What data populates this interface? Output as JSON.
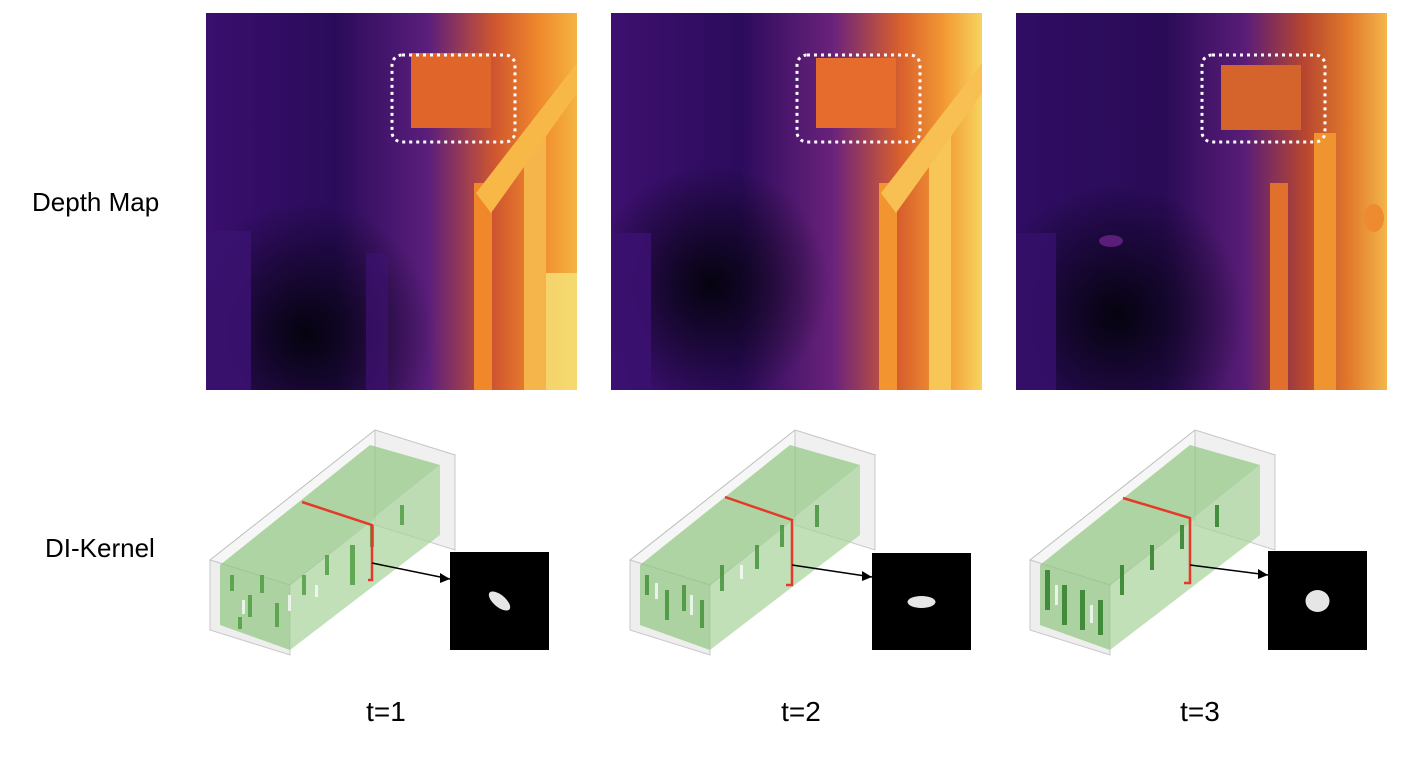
{
  "rows": {
    "depth_label": "Depth Map",
    "kernel_label": "DI-Kernel"
  },
  "columns": [
    {
      "step_label": "t=1",
      "kernel_angle_deg": 40,
      "kernel_rx": 13,
      "kernel_ry": 6
    },
    {
      "step_label": "t=2",
      "kernel_angle_deg": 0,
      "kernel_rx": 14,
      "kernel_ry": 6
    },
    {
      "step_label": "t=3",
      "kernel_angle_deg": 0,
      "kernel_rx": 12,
      "kernel_ry": 11
    }
  ],
  "colors": {
    "depth_dark": "#0d0829",
    "depth_mid": "#4a1a7a",
    "depth_warm": "#e8702b",
    "depth_bright": "#f5e47a",
    "highlight_box": "#ffffff",
    "kernel_slice": "#e53a2a",
    "kernel_voxels": "#7cbd6a"
  }
}
